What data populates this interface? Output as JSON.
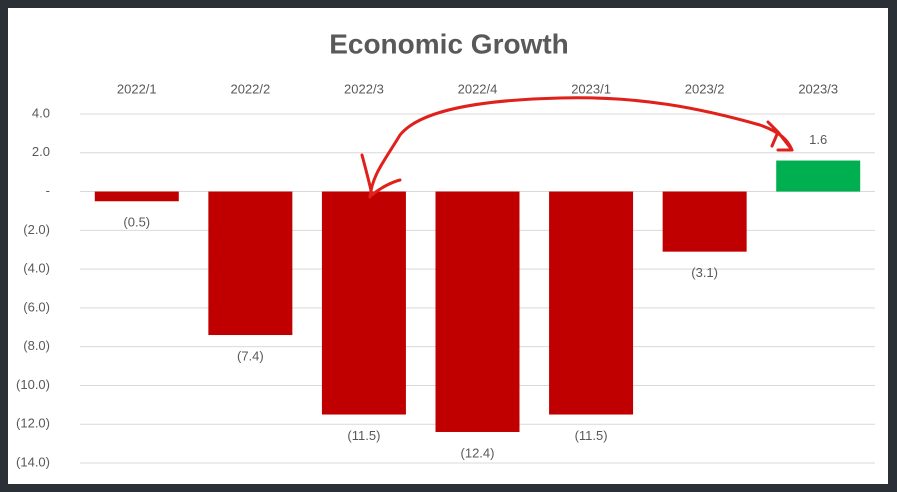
{
  "chart_data": {
    "type": "bar",
    "title": "Economic Growth",
    "categories": [
      "2022/1",
      "2022/2",
      "2022/3",
      "2022/4",
      "2023/1",
      "2023/2",
      "2023/3"
    ],
    "values": [
      -0.5,
      -7.4,
      -11.5,
      -12.4,
      -11.5,
      -3.1,
      1.6
    ],
    "value_labels": [
      "(0.5)",
      "(7.4)",
      "(11.5)",
      "(12.4)",
      "(11.5)",
      "(3.1)",
      "1.6"
    ],
    "colors": [
      "#c00000",
      "#c00000",
      "#c00000",
      "#c00000",
      "#c00000",
      "#c00000",
      "#00b050"
    ],
    "ylim": [
      -14,
      4
    ],
    "yticks": [
      {
        "value": 4,
        "label": "4.0"
      },
      {
        "value": 2,
        "label": "2.0"
      },
      {
        "value": 0,
        "label": "-"
      },
      {
        "value": -2,
        "label": "(2.0)"
      },
      {
        "value": -4,
        "label": "(4.0)"
      },
      {
        "value": -6,
        "label": "(6.0)"
      },
      {
        "value": -8,
        "label": "(8.0)"
      },
      {
        "value": -10,
        "label": "(10.0)"
      },
      {
        "value": -12,
        "label": "(12.0)"
      },
      {
        "value": -14,
        "label": "(14.0)"
      }
    ],
    "grid": true
  }
}
